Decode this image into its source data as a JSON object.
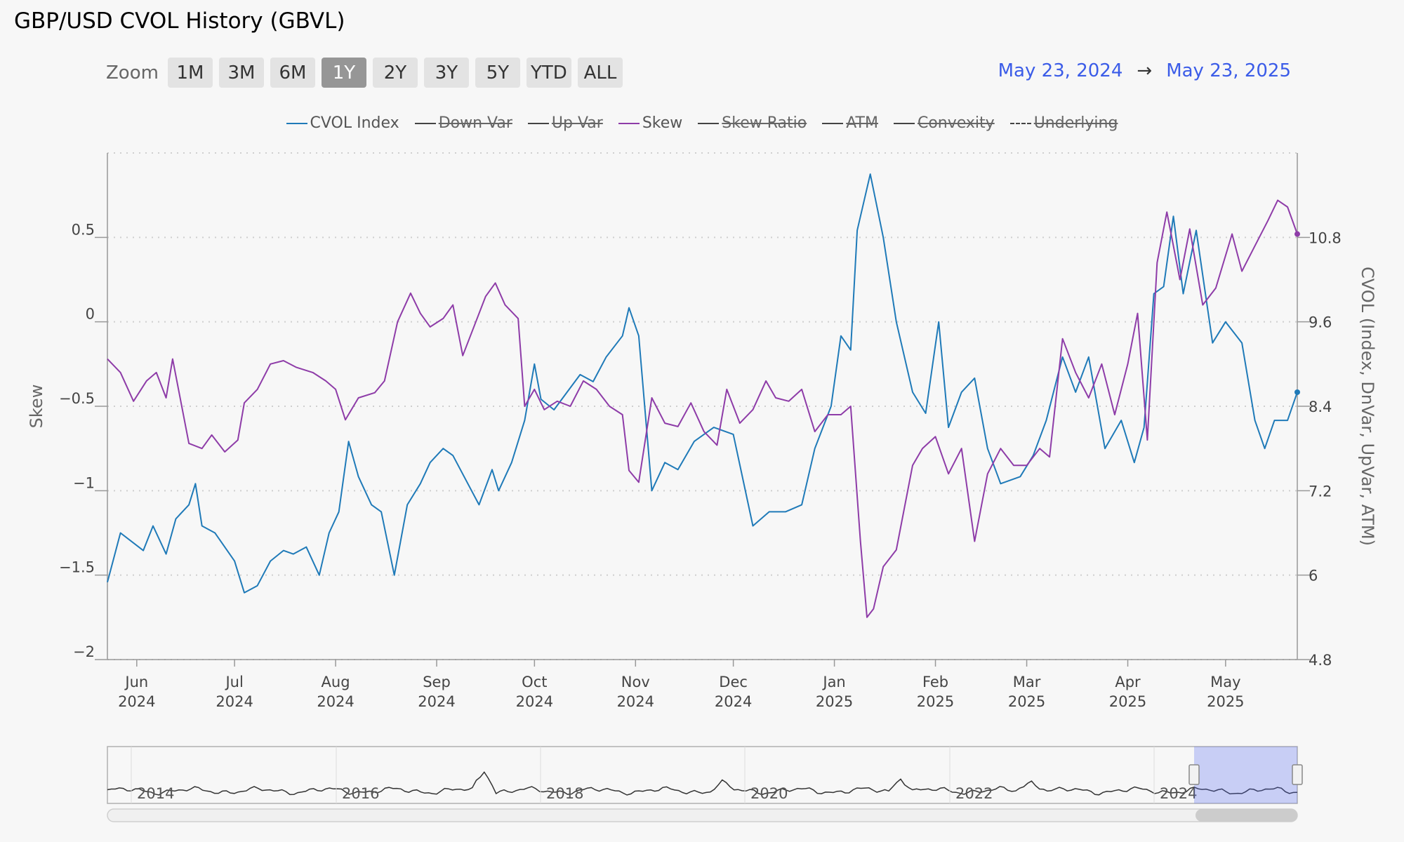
{
  "title": "GBP/USD CVOL History (GBVL)",
  "zoom": {
    "label": "Zoom",
    "buttons": [
      "1M",
      "3M",
      "6M",
      "1Y",
      "2Y",
      "3Y",
      "5Y",
      "YTD",
      "ALL"
    ],
    "selected": "1Y"
  },
  "range": {
    "from": "May 23, 2024",
    "arrow": "→",
    "to": "May 23, 2025"
  },
  "legend": [
    {
      "label": "CVOL Index",
      "color": "#1f7ab8",
      "enabled": true,
      "dash": false
    },
    {
      "label": "Down Var",
      "color": "#444444",
      "enabled": false,
      "dash": false
    },
    {
      "label": "Up Var",
      "color": "#444444",
      "enabled": false,
      "dash": false
    },
    {
      "label": "Skew",
      "color": "#8e3ca8",
      "enabled": true,
      "dash": false
    },
    {
      "label": "Skew Ratio",
      "color": "#444444",
      "enabled": false,
      "dash": false
    },
    {
      "label": "ATM",
      "color": "#444444",
      "enabled": false,
      "dash": false
    },
    {
      "label": "Convexity",
      "color": "#444444",
      "enabled": false,
      "dash": false
    },
    {
      "label": "Underlying",
      "color": "#444444",
      "enabled": false,
      "dash": true
    }
  ],
  "chart_data": {
    "type": "line",
    "x_range": [
      "2024-05-23",
      "2025-05-23"
    ],
    "left_axis": {
      "label": "Skew",
      "ticks": [
        "0.5",
        "0",
        "−0.5",
        "−1",
        "−1.5",
        "−2"
      ],
      "tick_values": [
        0.5,
        0,
        -0.5,
        -1,
        -1.5,
        -2
      ],
      "ylim": [
        -2,
        1
      ]
    },
    "right_axis": {
      "label": "CVOL (Index, DnVar, UpVar, ATM)",
      "ticks": [
        "10.8",
        "9.6",
        "8.4",
        "7.2",
        "6",
        "4.8"
      ],
      "tick_values": [
        10.8,
        9.6,
        8.4,
        7.2,
        6,
        4.8
      ],
      "ylim": [
        4.8,
        12
      ]
    },
    "x_ticks": [
      {
        "month": "Jun",
        "year": "2024",
        "date": "2024-06-01"
      },
      {
        "month": "Jul",
        "year": "2024",
        "date": "2024-07-01"
      },
      {
        "month": "Aug",
        "year": "2024",
        "date": "2024-08-01"
      },
      {
        "month": "Sep",
        "year": "2024",
        "date": "2024-09-01"
      },
      {
        "month": "Oct",
        "year": "2024",
        "date": "2024-10-01"
      },
      {
        "month": "Nov",
        "year": "2024",
        "date": "2024-11-01"
      },
      {
        "month": "Dec",
        "year": "2024",
        "date": "2024-12-01"
      },
      {
        "month": "Jan",
        "year": "2025",
        "date": "2025-01-01"
      },
      {
        "month": "Feb",
        "year": "2025",
        "date": "2025-02-01"
      },
      {
        "month": "Mar",
        "year": "2025",
        "date": "2025-03-01"
      },
      {
        "month": "Apr",
        "year": "2025",
        "date": "2025-04-01"
      },
      {
        "month": "May",
        "year": "2025",
        "date": "2025-05-01"
      }
    ],
    "series": [
      {
        "name": "CVOL Index",
        "axis": "right",
        "color": "#1f7ab8",
        "points": [
          [
            "2024-05-23",
            5.9
          ],
          [
            "2024-05-27",
            6.6
          ],
          [
            "2024-06-03",
            6.35
          ],
          [
            "2024-06-06",
            6.7
          ],
          [
            "2024-06-10",
            6.3
          ],
          [
            "2024-06-13",
            6.8
          ],
          [
            "2024-06-17",
            7.0
          ],
          [
            "2024-06-19",
            7.3
          ],
          [
            "2024-06-21",
            6.7
          ],
          [
            "2024-06-25",
            6.6
          ],
          [
            "2024-07-01",
            6.2
          ],
          [
            "2024-07-04",
            5.75
          ],
          [
            "2024-07-08",
            5.85
          ],
          [
            "2024-07-12",
            6.2
          ],
          [
            "2024-07-16",
            6.35
          ],
          [
            "2024-07-19",
            6.3
          ],
          [
            "2024-07-23",
            6.4
          ],
          [
            "2024-07-27",
            6.0
          ],
          [
            "2024-07-30",
            6.6
          ],
          [
            "2024-08-02",
            6.9
          ],
          [
            "2024-08-05",
            7.9
          ],
          [
            "2024-08-08",
            7.4
          ],
          [
            "2024-08-12",
            7.0
          ],
          [
            "2024-08-15",
            6.9
          ],
          [
            "2024-08-19",
            6.0
          ],
          [
            "2024-08-23",
            7.0
          ],
          [
            "2024-08-27",
            7.3
          ],
          [
            "2024-08-30",
            7.6
          ],
          [
            "2024-09-03",
            7.8
          ],
          [
            "2024-09-06",
            7.7
          ],
          [
            "2024-09-10",
            7.35
          ],
          [
            "2024-09-14",
            7.0
          ],
          [
            "2024-09-18",
            7.5
          ],
          [
            "2024-09-20",
            7.2
          ],
          [
            "2024-09-24",
            7.6
          ],
          [
            "2024-09-28",
            8.2
          ],
          [
            "2024-10-01",
            9.0
          ],
          [
            "2024-10-03",
            8.5
          ],
          [
            "2024-10-07",
            8.35
          ],
          [
            "2024-10-11",
            8.6
          ],
          [
            "2024-10-15",
            8.85
          ],
          [
            "2024-10-19",
            8.75
          ],
          [
            "2024-10-23",
            9.1
          ],
          [
            "2024-10-28",
            9.4
          ],
          [
            "2024-10-30",
            9.8
          ],
          [
            "2024-11-02",
            9.4
          ],
          [
            "2024-11-06",
            7.2
          ],
          [
            "2024-11-10",
            7.6
          ],
          [
            "2024-11-14",
            7.5
          ],
          [
            "2024-11-19",
            7.9
          ],
          [
            "2024-11-25",
            8.1
          ],
          [
            "2024-12-01",
            8.0
          ],
          [
            "2024-12-07",
            6.7
          ],
          [
            "2024-12-12",
            6.9
          ],
          [
            "2024-12-17",
            6.9
          ],
          [
            "2024-12-22",
            7.0
          ],
          [
            "2024-12-26",
            7.8
          ],
          [
            "2024-12-31",
            8.4
          ],
          [
            "2025-01-03",
            9.4
          ],
          [
            "2025-01-06",
            9.2
          ],
          [
            "2025-01-08",
            10.9
          ],
          [
            "2025-01-12",
            11.7
          ],
          [
            "2025-01-16",
            10.8
          ],
          [
            "2025-01-20",
            9.6
          ],
          [
            "2025-01-25",
            8.6
          ],
          [
            "2025-01-29",
            8.3
          ],
          [
            "2025-02-02",
            9.6
          ],
          [
            "2025-02-05",
            8.1
          ],
          [
            "2025-02-09",
            8.6
          ],
          [
            "2025-02-13",
            8.8
          ],
          [
            "2025-02-17",
            7.8
          ],
          [
            "2025-02-21",
            7.3
          ],
          [
            "2025-02-27",
            7.4
          ],
          [
            "2025-03-03",
            7.7
          ],
          [
            "2025-03-07",
            8.2
          ],
          [
            "2025-03-12",
            9.1
          ],
          [
            "2025-03-16",
            8.6
          ],
          [
            "2025-03-20",
            9.1
          ],
          [
            "2025-03-25",
            7.8
          ],
          [
            "2025-03-30",
            8.2
          ],
          [
            "2025-04-03",
            7.6
          ],
          [
            "2025-04-06",
            8.1
          ],
          [
            "2025-04-09",
            10.0
          ],
          [
            "2025-04-12",
            10.1
          ],
          [
            "2025-04-15",
            11.1
          ],
          [
            "2025-04-18",
            10.0
          ],
          [
            "2025-04-22",
            10.9
          ],
          [
            "2025-04-27",
            9.3
          ],
          [
            "2025-05-01",
            9.6
          ],
          [
            "2025-05-06",
            9.3
          ],
          [
            "2025-05-10",
            8.2
          ],
          [
            "2025-05-13",
            7.8
          ],
          [
            "2025-05-16",
            8.2
          ],
          [
            "2025-05-20",
            8.2
          ],
          [
            "2025-05-23",
            8.6
          ]
        ]
      },
      {
        "name": "Skew",
        "axis": "left",
        "color": "#8e3ca8",
        "points": [
          [
            "2024-05-23",
            -0.22
          ],
          [
            "2024-05-27",
            -0.3
          ],
          [
            "2024-05-31",
            -0.47
          ],
          [
            "2024-06-04",
            -0.35
          ],
          [
            "2024-06-07",
            -0.3
          ],
          [
            "2024-06-10",
            -0.45
          ],
          [
            "2024-06-12",
            -0.22
          ],
          [
            "2024-06-17",
            -0.72
          ],
          [
            "2024-06-21",
            -0.75
          ],
          [
            "2024-06-24",
            -0.67
          ],
          [
            "2024-06-28",
            -0.77
          ],
          [
            "2024-07-02",
            -0.7
          ],
          [
            "2024-07-04",
            -0.48
          ],
          [
            "2024-07-08",
            -0.4
          ],
          [
            "2024-07-12",
            -0.25
          ],
          [
            "2024-07-16",
            -0.23
          ],
          [
            "2024-07-20",
            -0.27
          ],
          [
            "2024-07-25",
            -0.3
          ],
          [
            "2024-07-29",
            -0.35
          ],
          [
            "2024-08-01",
            -0.4
          ],
          [
            "2024-08-04",
            -0.58
          ],
          [
            "2024-08-08",
            -0.45
          ],
          [
            "2024-08-13",
            -0.42
          ],
          [
            "2024-08-16",
            -0.35
          ],
          [
            "2024-08-20",
            0.0
          ],
          [
            "2024-08-24",
            0.17
          ],
          [
            "2024-08-27",
            0.05
          ],
          [
            "2024-08-30",
            -0.03
          ],
          [
            "2024-09-03",
            0.02
          ],
          [
            "2024-09-06",
            0.1
          ],
          [
            "2024-09-09",
            -0.2
          ],
          [
            "2024-09-13",
            0.0
          ],
          [
            "2024-09-16",
            0.15
          ],
          [
            "2024-09-19",
            0.23
          ],
          [
            "2024-09-22",
            0.1
          ],
          [
            "2024-09-26",
            0.02
          ],
          [
            "2024-09-28",
            -0.5
          ],
          [
            "2024-10-01",
            -0.4
          ],
          [
            "2024-10-04",
            -0.52
          ],
          [
            "2024-10-08",
            -0.47
          ],
          [
            "2024-10-12",
            -0.5
          ],
          [
            "2024-10-16",
            -0.35
          ],
          [
            "2024-10-20",
            -0.4
          ],
          [
            "2024-10-24",
            -0.5
          ],
          [
            "2024-10-28",
            -0.55
          ],
          [
            "2024-10-30",
            -0.88
          ],
          [
            "2024-11-02",
            -0.95
          ],
          [
            "2024-11-06",
            -0.45
          ],
          [
            "2024-11-10",
            -0.6
          ],
          [
            "2024-11-14",
            -0.62
          ],
          [
            "2024-11-18",
            -0.48
          ],
          [
            "2024-11-22",
            -0.65
          ],
          [
            "2024-11-26",
            -0.73
          ],
          [
            "2024-11-29",
            -0.4
          ],
          [
            "2024-12-03",
            -0.6
          ],
          [
            "2024-12-07",
            -0.52
          ],
          [
            "2024-12-11",
            -0.35
          ],
          [
            "2024-12-14",
            -0.45
          ],
          [
            "2024-12-18",
            -0.47
          ],
          [
            "2024-12-22",
            -0.4
          ],
          [
            "2024-12-26",
            -0.65
          ],
          [
            "2024-12-30",
            -0.55
          ],
          [
            "2025-01-03",
            -0.55
          ],
          [
            "2025-01-06",
            -0.5
          ],
          [
            "2025-01-09",
            -1.3
          ],
          [
            "2025-01-11",
            -1.75
          ],
          [
            "2025-01-13",
            -1.7
          ],
          [
            "2025-01-16",
            -1.45
          ],
          [
            "2025-01-20",
            -1.35
          ],
          [
            "2025-01-25",
            -0.85
          ],
          [
            "2025-01-28",
            -0.75
          ],
          [
            "2025-02-01",
            -0.68
          ],
          [
            "2025-02-05",
            -0.9
          ],
          [
            "2025-02-09",
            -0.75
          ],
          [
            "2025-02-13",
            -1.3
          ],
          [
            "2025-02-17",
            -0.9
          ],
          [
            "2025-02-21",
            -0.75
          ],
          [
            "2025-02-25",
            -0.85
          ],
          [
            "2025-03-01",
            -0.85
          ],
          [
            "2025-03-05",
            -0.75
          ],
          [
            "2025-03-08",
            -0.8
          ],
          [
            "2025-03-12",
            -0.1
          ],
          [
            "2025-03-16",
            -0.3
          ],
          [
            "2025-03-20",
            -0.45
          ],
          [
            "2025-03-24",
            -0.25
          ],
          [
            "2025-03-28",
            -0.55
          ],
          [
            "2025-04-01",
            -0.25
          ],
          [
            "2025-04-04",
            0.05
          ],
          [
            "2025-04-07",
            -0.7
          ],
          [
            "2025-04-10",
            0.35
          ],
          [
            "2025-04-13",
            0.65
          ],
          [
            "2025-04-17",
            0.25
          ],
          [
            "2025-04-20",
            0.55
          ],
          [
            "2025-04-24",
            0.1
          ],
          [
            "2025-04-28",
            0.2
          ],
          [
            "2025-05-03",
            0.52
          ],
          [
            "2025-05-06",
            0.3
          ],
          [
            "2025-05-10",
            0.45
          ],
          [
            "2025-05-14",
            0.6
          ],
          [
            "2025-05-17",
            0.72
          ],
          [
            "2025-05-20",
            0.68
          ],
          [
            "2025-05-23",
            0.52
          ]
        ]
      }
    ],
    "navigator": {
      "x_labels": [
        "2014",
        "2016",
        "2018",
        "2020",
        "2022",
        "2024"
      ]
    }
  }
}
